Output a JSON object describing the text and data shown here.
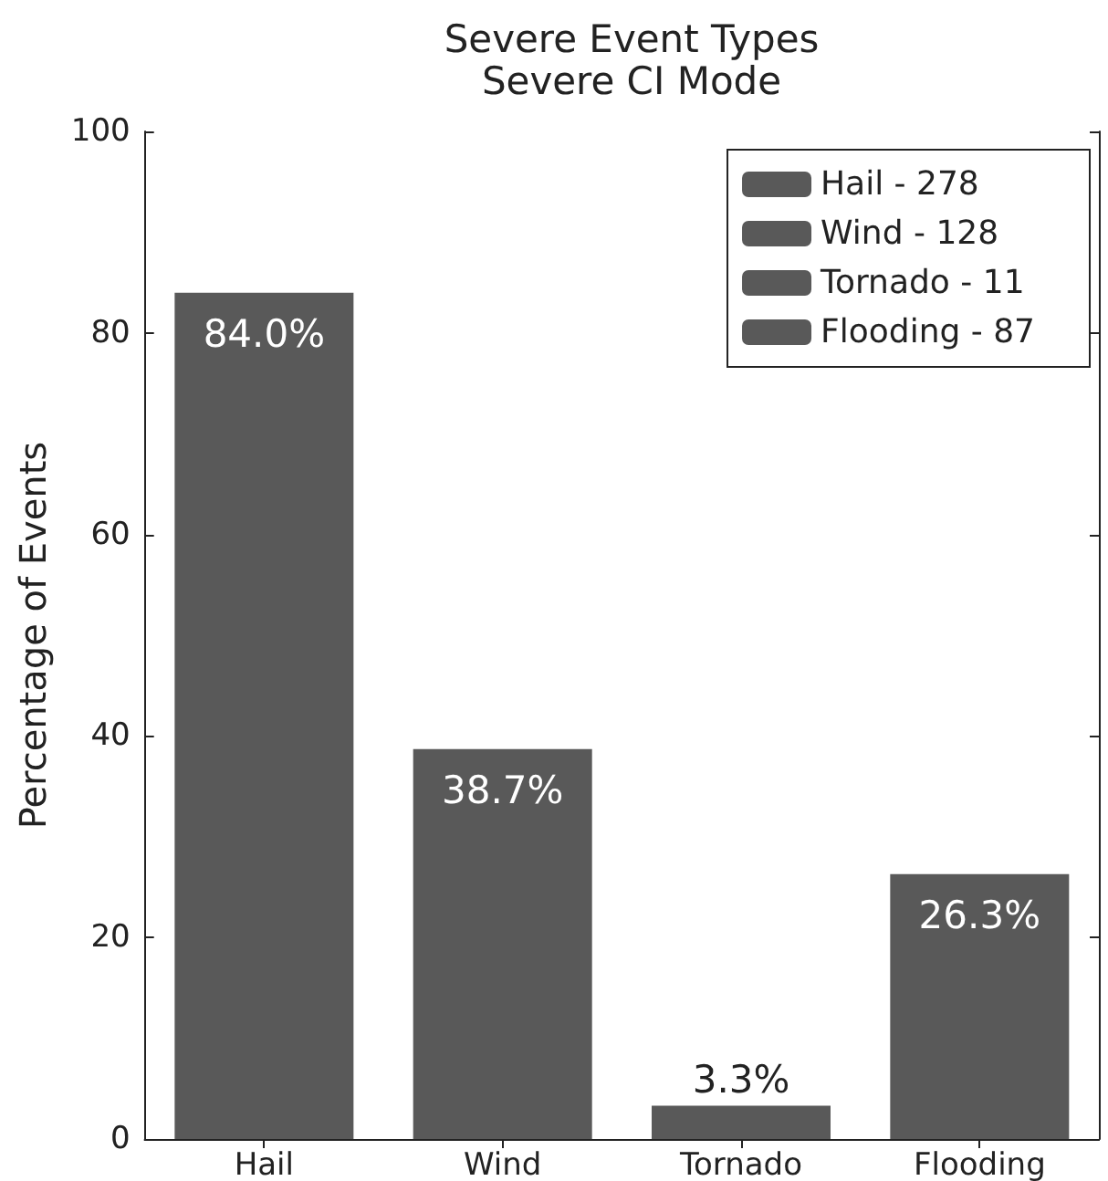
{
  "chart_data": {
    "type": "bar",
    "title": "Severe Event Types",
    "subtitle": "Severe CI Mode",
    "ylabel": "Percentage of Events",
    "categories": [
      "Hail",
      "Wind",
      "Tornado",
      "Flooding"
    ],
    "series": [
      {
        "name": "Hail - 278",
        "color": "#595959",
        "values": [
          84.0,
          null,
          null,
          null
        ],
        "value_labels": [
          "84.0%",
          null,
          null,
          null
        ]
      },
      {
        "name": "Wind - 128",
        "color": "#595959",
        "values": [
          null,
          38.7,
          null,
          null
        ],
        "value_labels": [
          null,
          "38.7%",
          null,
          null
        ]
      },
      {
        "name": "Tornado - 11",
        "color": "#595959",
        "values": [
          null,
          null,
          3.3,
          null
        ],
        "value_labels": [
          null,
          null,
          "3.3%",
          null
        ]
      },
      {
        "name": "Flooding - 87",
        "color": "#595959",
        "values": [
          null,
          null,
          null,
          26.3
        ],
        "value_labels": [
          null,
          null,
          null,
          "26.3%"
        ]
      }
    ],
    "ylim": [
      0,
      100
    ],
    "yticks": [
      0,
      20,
      40,
      60,
      80,
      100
    ],
    "grid": false,
    "legend": "top right"
  }
}
